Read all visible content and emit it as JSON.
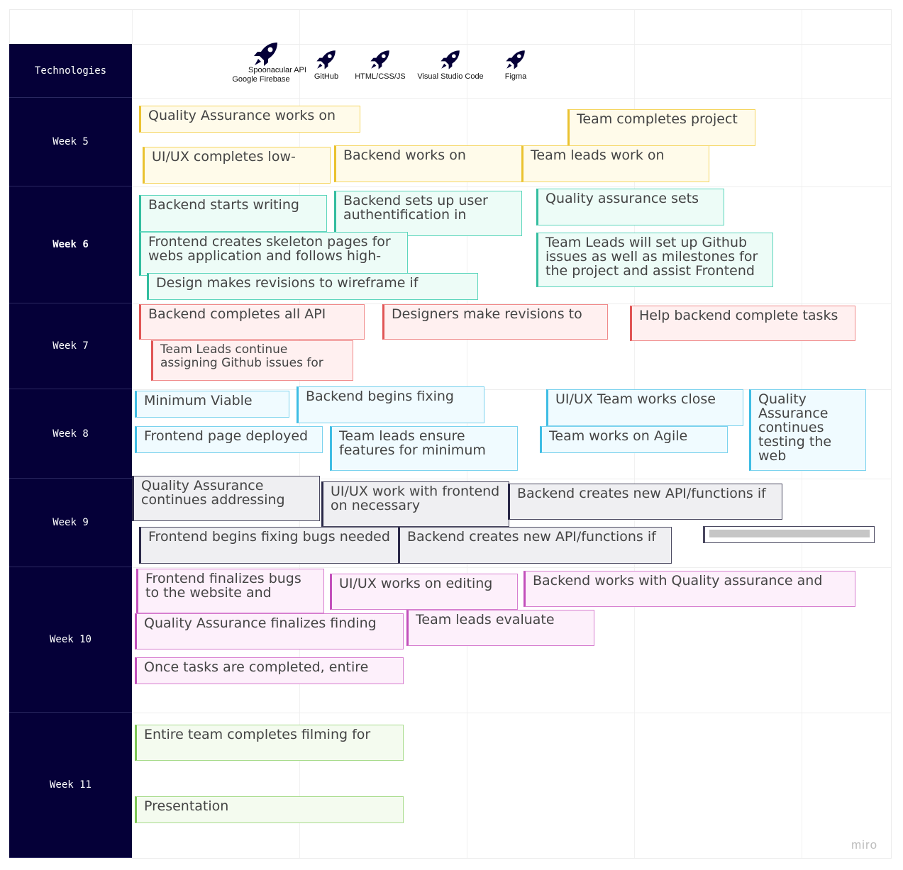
{
  "technologies": {
    "label": "Technologies",
    "items": [
      {
        "label_top": "Spoonacular API",
        "label": "Google Firebase",
        "icon": "rocket-icon"
      },
      {
        "label": "GitHub",
        "icon": "rocket-icon"
      },
      {
        "label": "HTML/CSS/JS",
        "icon": "rocket-icon"
      },
      {
        "label": "Visual Studio Code",
        "icon": "rocket-icon"
      },
      {
        "label": "Figma",
        "icon": "rocket-icon"
      }
    ]
  },
  "weeks": [
    {
      "label": "Week 5",
      "cards": [
        "Quality Assurance works on",
        "Team completes project",
        "UI/UX completes low-",
        "Backend works on",
        "Team leads work on"
      ]
    },
    {
      "label": "Week 6",
      "cards": [
        "Backend starts writing",
        "Backend sets up user authentification in",
        "Quality assurance sets",
        "Frontend creates skeleton pages for webs application and follows high-",
        "Team Leads will set up Github issues as well as milestones for the project and assist Frontend",
        "Design makes revisions to wireframe if"
      ]
    },
    {
      "label": "Week 7",
      "cards": [
        "Backend completes all API",
        "Designers make revisions to",
        "Help backend complete tasks",
        "Team Leads continue assigning Github issues for"
      ]
    },
    {
      "label": "Week 8",
      "cards": [
        "Minimum Viable",
        "Backend begins fixing",
        "UI/UX Team works close",
        "Quality Assurance continues testing the web",
        "Frontend page deployed",
        "Team leads ensure features for minimum",
        "Team works on Agile"
      ]
    },
    {
      "label": "Week 9",
      "cards": [
        "Quality Assurance continues addressing",
        "UI/UX work with frontend on necessary",
        "Backend creates new API/functions if",
        "Frontend begins fixing bugs needed",
        "Backend creates new API/functions if"
      ]
    },
    {
      "label": "Week 10",
      "cards": [
        "Frontend finalizes bugs to the website and",
        "UI/UX works on editing",
        "Backend works with Quality assurance and",
        "Quality Assurance finalizes finding",
        "Team leads evaluate",
        "Once tasks are completed, entire"
      ]
    },
    {
      "label": "Week 11",
      "cards": [
        "Entire team completes filming for",
        "Presentation"
      ]
    }
  ],
  "colors": {
    "header_bg": "#050038",
    "week5": "#fffbea",
    "week6": "#edfcf7",
    "week7": "#fff0f0",
    "week8": "#f0fbff",
    "week9": "#efeff2",
    "week10": "#fdf0fb",
    "week11": "#f4fbef"
  },
  "watermark": "miro"
}
